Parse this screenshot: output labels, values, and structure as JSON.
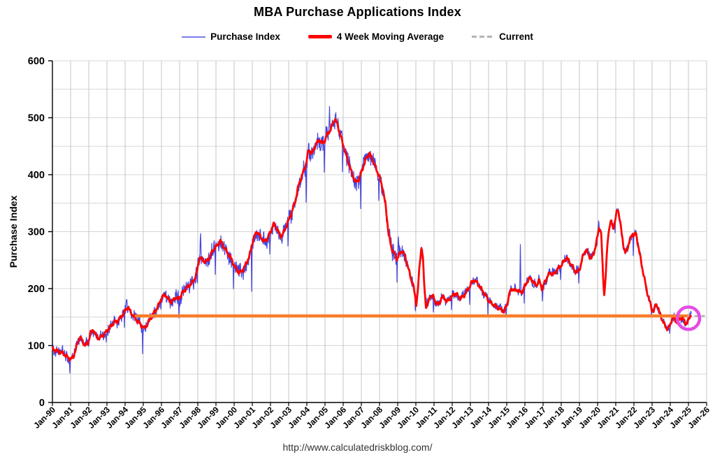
{
  "title": "MBA Purchase Applications Index",
  "legend": {
    "items": [
      {
        "label": "Purchase Index",
        "swatch": "thin-blue-line"
      },
      {
        "label": "4 Week Moving Average",
        "swatch": "thick-red-line"
      },
      {
        "label": "Current",
        "swatch": "gray-dashed-line"
      }
    ]
  },
  "footer": {
    "url": "http://www.calculatedriskblog.com/"
  },
  "colors": {
    "purchase_index": "#4646dd",
    "moving_average": "#ff0000",
    "current_dash": "#b0b0b0",
    "reference_line_orange": "#f97d2b",
    "highlight_circle_magenta": "#e34de3",
    "grid_vertical": "#c6c6c6",
    "grid_horizontal": "#d7d7d7",
    "axis": "#000000",
    "text": "#000000",
    "footer_text": "#333333"
  },
  "chart_data": {
    "type": "line",
    "title": "MBA Purchase Applications Index",
    "xlabel": "",
    "ylabel": "Purchase Index",
    "ylim": [
      0,
      600
    ],
    "y_tick_labels": [
      "0",
      "100",
      "200",
      "300",
      "400",
      "500",
      "600"
    ],
    "y_major_step": 100,
    "y_minor_grid_step": 50,
    "x_tick_labels": [
      "Jan-90",
      "Jan-91",
      "Jan-92",
      "Jan-93",
      "Jan-94",
      "Jan-95",
      "Jan-96",
      "Jan-97",
      "Jan-98",
      "Jan-99",
      "Jan-00",
      "Jan-01",
      "Jan-02",
      "Jan-03",
      "Jan-04",
      "Jan-05",
      "Jan-06",
      "Jan-07",
      "Jan-08",
      "Jan-09",
      "Jan-10",
      "Jan-11",
      "Jan-12",
      "Jan-13",
      "Jan-14",
      "Jan-15",
      "Jan-16",
      "Jan-17",
      "Jan-18",
      "Jan-19",
      "Jan-20",
      "Jan-21",
      "Jan-22",
      "Jan-23",
      "Jan-24",
      "Jan-25",
      "Jan-26"
    ],
    "x_start_year": 1990,
    "x_end_year": 2026,
    "grid": true,
    "legend_position": "top",
    "series": [
      {
        "name": "4 Week Moving Average",
        "style": "thick-red",
        "note": "anchor points [decimal_year, index_value] read from chart; weekly curve is linear interpolation",
        "anchors": [
          [
            1990.0,
            94
          ],
          [
            1990.3,
            90
          ],
          [
            1990.6,
            86
          ],
          [
            1990.85,
            79
          ],
          [
            1991.0,
            76
          ],
          [
            1991.15,
            80
          ],
          [
            1991.3,
            95
          ],
          [
            1991.5,
            116
          ],
          [
            1991.65,
            108
          ],
          [
            1991.8,
            100
          ],
          [
            1991.95,
            104
          ],
          [
            1992.1,
            122
          ],
          [
            1992.25,
            128
          ],
          [
            1992.4,
            117
          ],
          [
            1992.55,
            112
          ],
          [
            1992.7,
            116
          ],
          [
            1992.85,
            120
          ],
          [
            1993.0,
            126
          ],
          [
            1993.2,
            133
          ],
          [
            1993.4,
            141
          ],
          [
            1993.6,
            143
          ],
          [
            1993.8,
            151
          ],
          [
            1994.0,
            161
          ],
          [
            1994.15,
            168
          ],
          [
            1994.3,
            159
          ],
          [
            1994.5,
            150
          ],
          [
            1994.7,
            142
          ],
          [
            1994.9,
            135
          ],
          [
            1995.05,
            130
          ],
          [
            1995.2,
            136
          ],
          [
            1995.4,
            148
          ],
          [
            1995.6,
            158
          ],
          [
            1995.8,
            168
          ],
          [
            1996.0,
            183
          ],
          [
            1996.2,
            190
          ],
          [
            1996.35,
            182
          ],
          [
            1996.55,
            176
          ],
          [
            1996.75,
            184
          ],
          [
            1996.95,
            182
          ],
          [
            1997.15,
            192
          ],
          [
            1997.35,
            200
          ],
          [
            1997.55,
            206
          ],
          [
            1997.75,
            212
          ],
          [
            1997.95,
            228
          ],
          [
            1998.1,
            256
          ],
          [
            1998.25,
            250
          ],
          [
            1998.45,
            247
          ],
          [
            1998.65,
            255
          ],
          [
            1998.85,
            268
          ],
          [
            1999.05,
            275
          ],
          [
            1999.25,
            284
          ],
          [
            1999.45,
            272
          ],
          [
            1999.65,
            262
          ],
          [
            1999.85,
            252
          ],
          [
            2000.05,
            237
          ],
          [
            2000.25,
            228
          ],
          [
            2000.45,
            231
          ],
          [
            2000.65,
            243
          ],
          [
            2000.85,
            258
          ],
          [
            2001.05,
            286
          ],
          [
            2001.25,
            301
          ],
          [
            2001.45,
            291
          ],
          [
            2001.65,
            282
          ],
          [
            2001.85,
            289
          ],
          [
            2002.0,
            299
          ],
          [
            2002.15,
            314
          ],
          [
            2002.35,
            306
          ],
          [
            2002.55,
            291
          ],
          [
            2002.75,
            300
          ],
          [
            2002.95,
            316
          ],
          [
            2003.15,
            332
          ],
          [
            2003.35,
            352
          ],
          [
            2003.55,
            382
          ],
          [
            2003.75,
            400
          ],
          [
            2003.95,
            418
          ],
          [
            2004.1,
            444
          ],
          [
            2004.3,
            437
          ],
          [
            2004.5,
            454
          ],
          [
            2004.7,
            461
          ],
          [
            2004.9,
            454
          ],
          [
            2005.1,
            469
          ],
          [
            2005.3,
            479
          ],
          [
            2005.45,
            491
          ],
          [
            2005.55,
            499
          ],
          [
            2005.7,
            486
          ],
          [
            2005.9,
            464
          ],
          [
            2006.1,
            441
          ],
          [
            2006.3,
            421
          ],
          [
            2006.5,
            400
          ],
          [
            2006.7,
            386
          ],
          [
            2006.9,
            394
          ],
          [
            2007.1,
            414
          ],
          [
            2007.3,
            431
          ],
          [
            2007.45,
            437
          ],
          [
            2007.6,
            428
          ],
          [
            2007.8,
            411
          ],
          [
            2008.0,
            396
          ],
          [
            2008.2,
            372
          ],
          [
            2008.35,
            342
          ],
          [
            2008.5,
            296
          ],
          [
            2008.65,
            272
          ],
          [
            2008.8,
            262
          ],
          [
            2008.95,
            252
          ],
          [
            2009.1,
            260
          ],
          [
            2009.25,
            267
          ],
          [
            2009.4,
            257
          ],
          [
            2009.55,
            240
          ],
          [
            2009.7,
            221
          ],
          [
            2009.85,
            206
          ],
          [
            2009.95,
            188
          ],
          [
            2010.02,
            173
          ],
          [
            2010.1,
            192
          ],
          [
            2010.2,
            238
          ],
          [
            2010.3,
            273
          ],
          [
            2010.38,
            258
          ],
          [
            2010.45,
            212
          ],
          [
            2010.55,
            169
          ],
          [
            2010.65,
            172
          ],
          [
            2010.8,
            188
          ],
          [
            2010.95,
            186
          ],
          [
            2011.1,
            176
          ],
          [
            2011.25,
            171
          ],
          [
            2011.4,
            183
          ],
          [
            2011.55,
            186
          ],
          [
            2011.7,
            176
          ],
          [
            2011.85,
            182
          ],
          [
            2012.0,
            186
          ],
          [
            2012.15,
            192
          ],
          [
            2012.3,
            188
          ],
          [
            2012.45,
            183
          ],
          [
            2012.6,
            186
          ],
          [
            2012.75,
            192
          ],
          [
            2012.9,
            200
          ],
          [
            2013.05,
            210
          ],
          [
            2013.2,
            215
          ],
          [
            2013.35,
            211
          ],
          [
            2013.5,
            204
          ],
          [
            2013.65,
            197
          ],
          [
            2013.8,
            190
          ],
          [
            2013.95,
            182
          ],
          [
            2014.1,
            175
          ],
          [
            2014.25,
            172
          ],
          [
            2014.4,
            169
          ],
          [
            2014.55,
            166
          ],
          [
            2014.7,
            162
          ],
          [
            2014.85,
            160
          ],
          [
            2015.0,
            170
          ],
          [
            2015.15,
            192
          ],
          [
            2015.3,
            200
          ],
          [
            2015.45,
            196
          ],
          [
            2015.6,
            198
          ],
          [
            2015.75,
            193
          ],
          [
            2015.9,
            196
          ],
          [
            2016.05,
            208
          ],
          [
            2016.2,
            216
          ],
          [
            2016.35,
            218
          ],
          [
            2016.5,
            209
          ],
          [
            2016.65,
            206
          ],
          [
            2016.8,
            214
          ],
          [
            2016.95,
            199
          ],
          [
            2017.1,
            212
          ],
          [
            2017.25,
            222
          ],
          [
            2017.4,
            228
          ],
          [
            2017.55,
            224
          ],
          [
            2017.7,
            230
          ],
          [
            2017.85,
            236
          ],
          [
            2018.0,
            241
          ],
          [
            2018.15,
            248
          ],
          [
            2018.3,
            254
          ],
          [
            2018.45,
            247
          ],
          [
            2018.6,
            240
          ],
          [
            2018.75,
            231
          ],
          [
            2018.9,
            228
          ],
          [
            2019.05,
            238
          ],
          [
            2019.2,
            258
          ],
          [
            2019.35,
            269
          ],
          [
            2019.5,
            260
          ],
          [
            2019.65,
            252
          ],
          [
            2019.8,
            263
          ],
          [
            2019.95,
            283
          ],
          [
            2020.08,
            308
          ],
          [
            2020.2,
            296
          ],
          [
            2020.3,
            222
          ],
          [
            2020.37,
            188
          ],
          [
            2020.45,
            224
          ],
          [
            2020.55,
            282
          ],
          [
            2020.65,
            310
          ],
          [
            2020.75,
            318
          ],
          [
            2020.85,
            306
          ],
          [
            2020.95,
            316
          ],
          [
            2021.05,
            334
          ],
          [
            2021.12,
            340
          ],
          [
            2021.22,
            322
          ],
          [
            2021.32,
            298
          ],
          [
            2021.42,
            277
          ],
          [
            2021.52,
            262
          ],
          [
            2021.62,
            268
          ],
          [
            2021.72,
            280
          ],
          [
            2021.82,
            288
          ],
          [
            2021.92,
            296
          ],
          [
            2022.02,
            294
          ],
          [
            2022.1,
            298
          ],
          [
            2022.2,
            282
          ],
          [
            2022.3,
            264
          ],
          [
            2022.4,
            246
          ],
          [
            2022.5,
            230
          ],
          [
            2022.6,
            214
          ],
          [
            2022.7,
            198
          ],
          [
            2022.8,
            185
          ],
          [
            2022.9,
            173
          ],
          [
            2023.0,
            162
          ],
          [
            2023.1,
            160
          ],
          [
            2023.2,
            173
          ],
          [
            2023.3,
            170
          ],
          [
            2023.4,
            158
          ],
          [
            2023.5,
            150
          ],
          [
            2023.6,
            142
          ],
          [
            2023.7,
            135
          ],
          [
            2023.8,
            130
          ],
          [
            2023.9,
            130
          ],
          [
            2024.0,
            136
          ],
          [
            2024.1,
            148
          ],
          [
            2024.2,
            150
          ],
          [
            2024.3,
            143
          ],
          [
            2024.4,
            141
          ],
          [
            2024.5,
            145
          ],
          [
            2024.6,
            149
          ],
          [
            2024.7,
            147
          ],
          [
            2024.8,
            140
          ],
          [
            2024.9,
            139
          ],
          [
            2025.0,
            144
          ],
          [
            2025.08,
            150
          ],
          [
            2025.17,
            158
          ]
        ]
      },
      {
        "name": "Purchase Index",
        "style": "thin-blue",
        "note": "weekly raw index = moving average + weekly volatility; holiday-week downspikes and event upspikes below",
        "derived_from": "4 Week Moving Average",
        "spikes": [
          [
            1990.97,
            -20
          ],
          [
            1992.0,
            -14
          ],
          [
            1992.97,
            -18
          ],
          [
            1993.97,
            -24
          ],
          [
            1994.08,
            22
          ],
          [
            1994.97,
            -44
          ],
          [
            1995.97,
            -24
          ],
          [
            1996.97,
            -24
          ],
          [
            1997.97,
            -28
          ],
          [
            1998.15,
            40
          ],
          [
            1998.97,
            -38
          ],
          [
            1999.97,
            -34
          ],
          [
            2000.97,
            -68
          ],
          [
            2001.97,
            -44
          ],
          [
            2002.97,
            -48
          ],
          [
            2003.97,
            -62
          ],
          [
            2004.97,
            -54
          ],
          [
            2005.25,
            45
          ],
          [
            2005.97,
            -58
          ],
          [
            2006.97,
            -48
          ],
          [
            2007.97,
            -44
          ],
          [
            2008.97,
            -38
          ],
          [
            2009.04,
            44
          ],
          [
            2009.97,
            -28
          ],
          [
            2010.97,
            -24
          ],
          [
            2011.97,
            -27
          ],
          [
            2012.97,
            -28
          ],
          [
            2013.97,
            -22
          ],
          [
            2014.97,
            -18
          ],
          [
            2015.75,
            88
          ],
          [
            2015.97,
            -24
          ],
          [
            2016.97,
            -22
          ],
          [
            2017.97,
            -24
          ],
          [
            2018.97,
            -26
          ],
          [
            2019.97,
            -18
          ],
          [
            2020.06,
            16
          ],
          [
            2020.97,
            -16
          ],
          [
            2021.97,
            -33
          ],
          [
            2022.97,
            -16
          ],
          [
            2023.97,
            -14
          ],
          [
            2024.97,
            -10
          ]
        ],
        "peak_value": 528,
        "peak_year": 2005.25,
        "min_value": 57,
        "min_year": 1991.0
      },
      {
        "name": "Current",
        "style": "gray-dashed",
        "value": 152,
        "x_start": 2024.95,
        "x_end": 2025.9
      }
    ],
    "annotations": {
      "reference_line": {
        "description": "horizontal orange line at current level",
        "value": 152,
        "x_start": 1994.6,
        "x_end": 2025.0
      },
      "highlight_circle": {
        "description": "magenta circle around latest data",
        "x": 2025.0,
        "value": 148,
        "radius_px": 16
      }
    }
  }
}
